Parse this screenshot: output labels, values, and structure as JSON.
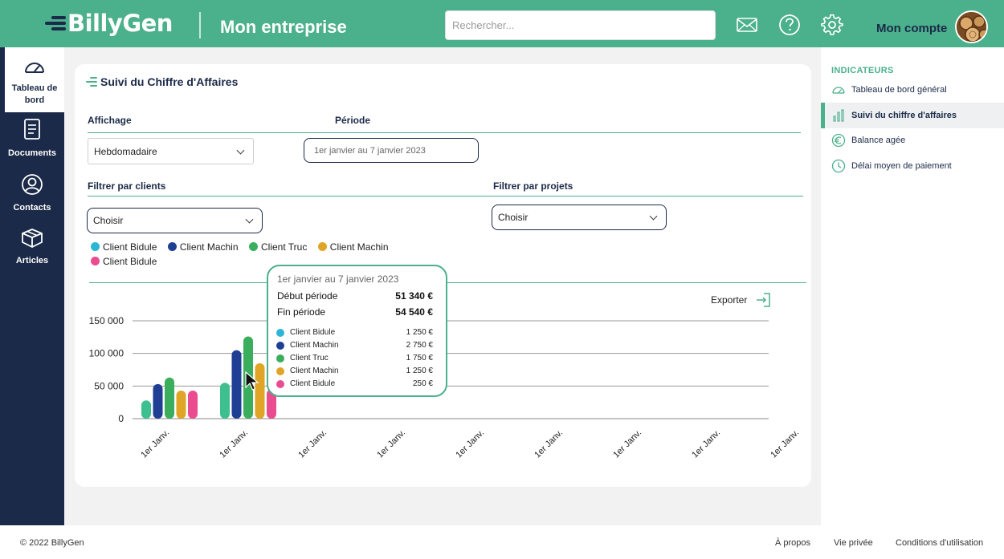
{
  "header": {
    "brand": "BillyGen",
    "title": "Mon entreprise",
    "search_placeholder": "Rechercher...",
    "account_label": "Mon compte"
  },
  "sidebar": {
    "items": [
      {
        "label": "Tableau de bord",
        "icon": "dashboard-gauge-icon",
        "active": true
      },
      {
        "label": "Documents",
        "icon": "document-icon"
      },
      {
        "label": "Contacts",
        "icon": "user-icon"
      },
      {
        "label": "Articles",
        "icon": "box-icon"
      }
    ]
  },
  "main": {
    "title": "Suivi du Chiffre d'Affaires",
    "affichage_label": "Affichage",
    "affichage_value": "Hebdomadaire",
    "periode_label": "Période",
    "periode_value": "1er janvier au 7 janvier 2023",
    "filter_clients_label": "Filtrer par clients",
    "filter_clients_value": "Choisir",
    "filter_projets_label": "Filtrer par projets",
    "filter_projets_value": "Choisir",
    "export_label": "Exporter"
  },
  "tooltip": {
    "period": "1er janvier au 7 janvier 2023",
    "start_label": "Début période",
    "start_value": "51 340 €",
    "end_label": "Fin période",
    "end_value": "54 540 €",
    "items": [
      {
        "name": "Client Bidule",
        "value": "1 250 €",
        "color": "#2bb5d6"
      },
      {
        "name": "Client Machin",
        "value": "2 750 €",
        "color": "#1f3f94"
      },
      {
        "name": "Client Truc",
        "value": "1 750 €",
        "color": "#3aae5c"
      },
      {
        "name": "Client Machin",
        "value": "1 250 €",
        "color": "#e0a526"
      },
      {
        "name": "Client Bidule",
        "value": "250 €",
        "color": "#ea4c8f"
      }
    ]
  },
  "chart_data": {
    "type": "bar",
    "categories": [
      "1er Janv.",
      "1er Janv.",
      "1er Janv.",
      "1er Janv.",
      "1er Janv.",
      "1er Janv.",
      "1er Janv.",
      "1er Janv.",
      "1er Janv."
    ],
    "ylim": [
      0,
      150000
    ],
    "yticks": [
      0,
      50000,
      100000,
      150000
    ],
    "ytick_labels": [
      "0",
      "50 000",
      "100 000",
      "150 000"
    ],
    "grid": true,
    "legend_position": "top-left",
    "series": [
      {
        "name": "Client Bidule",
        "color": "#3dbf8f",
        "values": [
          28000,
          55000,
          null,
          null,
          null,
          null,
          null,
          null,
          null
        ]
      },
      {
        "name": "Client Machin",
        "color": "#1f3f94",
        "values": [
          53000,
          105000,
          null,
          null,
          null,
          null,
          null,
          null,
          null
        ]
      },
      {
        "name": "Client Truc",
        "color": "#3aae5c",
        "values": [
          63000,
          126000,
          null,
          null,
          null,
          null,
          null,
          null,
          null
        ]
      },
      {
        "name": "Client Machin",
        "color": "#e0a526",
        "values": [
          43000,
          85000,
          null,
          null,
          null,
          null,
          null,
          null,
          null
        ]
      },
      {
        "name": "Client Bidule",
        "color": "#ea4c8f",
        "values": [
          43000,
          45000,
          null,
          null,
          null,
          null,
          null,
          null,
          null
        ]
      }
    ],
    "legend": [
      {
        "name": "Client Bidule",
        "color": "#2bb5d6"
      },
      {
        "name": "Client Machin",
        "color": "#1f3f94"
      },
      {
        "name": "Client Truc",
        "color": "#3aae5c"
      },
      {
        "name": "Client Machin",
        "color": "#e0a526"
      },
      {
        "name": "Client Bidule",
        "color": "#ea4c8f"
      }
    ]
  },
  "right_panel": {
    "heading": "INDICATEURS",
    "items": [
      {
        "label": "Tableau de bord général",
        "icon": "gauge-icon"
      },
      {
        "label": "Suivi du chiffre d'affaires",
        "icon": "bar-chart-icon",
        "active": true
      },
      {
        "label": "Balance agée",
        "icon": "euro-icon"
      },
      {
        "label": "Délai moyen de paiement",
        "icon": "clock-icon"
      }
    ]
  },
  "footer": {
    "copyright": "© 2022 BillyGen",
    "links": [
      "À propos",
      "Vie privée",
      "Conditions d'utilisation"
    ]
  }
}
